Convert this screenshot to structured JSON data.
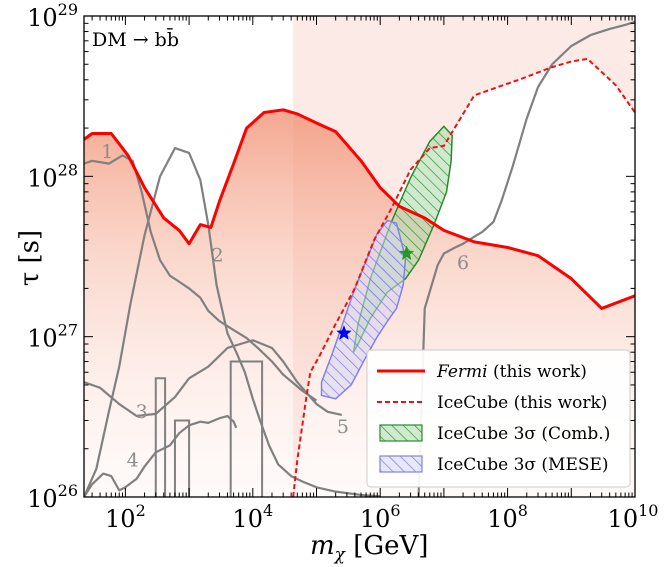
{
  "chart_data": {
    "type": "line",
    "annotation": "DM → bb̄",
    "xlabel": "m",
    "xlabel_sub": "χ",
    "xlabel_unit": " [GeV]",
    "ylabel": "τ [s]",
    "xscale": "log",
    "yscale": "log",
    "xlim": [
      22.4,
      10000000000.0
    ],
    "ylim": [
      1e+26,
      1e+29
    ],
    "x_ticks": [
      {
        "value": 100,
        "base": "10",
        "exp": "2"
      },
      {
        "value": 10000,
        "base": "10",
        "exp": "4"
      },
      {
        "value": 1000000,
        "base": "10",
        "exp": "6"
      },
      {
        "value": 100000000,
        "base": "10",
        "exp": "8"
      },
      {
        "value": 10000000000,
        "base": "10",
        "exp": "10"
      }
    ],
    "y_ticks": [
      {
        "value": 1e+26,
        "base": "10",
        "exp": "26"
      },
      {
        "value": 1e+27,
        "base": "10",
        "exp": "27"
      },
      {
        "value": 1e+28,
        "base": "10",
        "exp": "28"
      },
      {
        "value": 1e+29,
        "base": "10",
        "exp": "29"
      }
    ],
    "colors": {
      "fermi": "#ff0000",
      "fermi_fill": "#f6a58c",
      "icecube": "#ee1111",
      "icecube_fill": "#fbe6e3",
      "gray": "#808080",
      "label_gray": "#8c8c8c",
      "comb": "#2a8a2a",
      "comb_fill": "#9bd39b",
      "mese": "#8080ee",
      "mese_fill": "#c8c8f6",
      "star_green": "#229922",
      "star_blue": "#0000ee"
    },
    "series": [
      {
        "name": "Fermi (this work)",
        "role": "fermi",
        "x": [
          22.4,
          30,
          60,
          110,
          200,
          400,
          700,
          1000,
          1500,
          2200,
          3000,
          5000,
          8000,
          15000,
          30000,
          50000,
          100000,
          200000,
          500000,
          1000000,
          2000000,
          5000000,
          10000000,
          30000000,
          100000000,
          300000000,
          1000000000,
          3000000000,
          10000000000
        ],
        "y": [
          1.7e+28,
          1.85e+28,
          1.85e+28,
          1.35e+28,
          8.5e+27,
          5.5e+27,
          4.6e+27,
          3.8e+27,
          5e+27,
          4.8e+27,
          7e+27,
          1.2e+28,
          2e+28,
          2.5e+28,
          2.6e+28,
          2.45e+28,
          2.15e+28,
          1.9e+28,
          1.25e+28,
          8.5e+27,
          6.5e+27,
          5.5e+27,
          4.6e+27,
          3.9e+27,
          3.6e+27,
          3.2e+27,
          2.3e+27,
          1.5e+27,
          1.8e+27
        ]
      },
      {
        "name": "IceCube (this work)",
        "role": "icecube",
        "x": [
          43000,
          50000,
          70000,
          80000,
          110000,
          200000,
          400000,
          800000,
          1500000,
          3000000,
          6000000,
          10000000,
          30000000,
          70000000,
          150000000,
          500000000,
          1000000000,
          1800000000,
          5000000000,
          10000000000
        ],
        "y": [
          1e+26,
          1.7e+26,
          4.3e+26,
          6e+26,
          7.5e+26,
          1.2e+27,
          2e+27,
          4e+27,
          6.3e+27,
          1.1e+28,
          1.5e+28,
          1.55e+28,
          3.2e+28,
          3.6e+28,
          4e+28,
          4.8e+28,
          5.2e+28,
          5.4e+28,
          3.7e+28,
          2.5e+28
        ]
      },
      {
        "name": "1",
        "role": "gray",
        "x": [
          22.4,
          30,
          55,
          90,
          130,
          180,
          250,
          350,
          500,
          700,
          1000,
          1500,
          2000,
          3000,
          5000,
          8000,
          12000,
          20000,
          30000,
          60000,
          100000
        ],
        "y": [
          1.2e+28,
          1.25e+28,
          1.2e+28,
          1.35e+28,
          1.25e+28,
          8e+27,
          4.5e+27,
          3e+27,
          2.4e+27,
          2.2e+27,
          2e+27,
          1.75e+27,
          1.45e+27,
          1.25e+27,
          1.1e+27,
          9.8e+26,
          8.5e+26,
          7e+26,
          5.8e+26,
          4.6e+26,
          4e+26
        ]
      },
      {
        "name": "2",
        "role": "gray",
        "x": [
          22.4,
          35,
          55,
          80,
          120,
          200,
          350,
          600,
          1000,
          1500,
          2000,
          2700,
          4000,
          5500,
          7500,
          10000,
          13000,
          18000,
          25000,
          40000,
          60000,
          100000,
          200000,
          500000,
          1000000
        ],
        "y": [
          1e+26,
          1.5e+26,
          3.4e+26,
          6.5e+26,
          1.6e+27,
          4.3e+27,
          1e+28,
          1.5e+28,
          1.4e+28,
          9.5e+27,
          5e+27,
          2.1e+27,
          1.05e+27,
          8e+26,
          6e+26,
          4.1e+26,
          3e+26,
          2.1e+26,
          1.6e+26,
          1.35e+26,
          1.25e+26,
          1.15e+26,
          1.08e+26,
          1.03e+26,
          1.01e+26
        ]
      },
      {
        "name": "3",
        "role": "gray",
        "x": [
          22.4,
          40,
          80,
          150,
          300,
          600,
          1000,
          2000,
          4000,
          10000,
          20000,
          30000,
          50000,
          80000,
          100000,
          150000,
          250000
        ],
        "y": [
          5.2e+26,
          4.8e+26,
          3.8e+26,
          3.2e+26,
          3.3e+26,
          4.2e+26,
          5.5e+26,
          6.5e+26,
          8.5e+26,
          9.5e+26,
          8.5e+26,
          7e+26,
          5.2e+26,
          4.2e+26,
          3.8e+26,
          3.4e+26,
          3.25e+26
        ]
      },
      {
        "name": "4",
        "role": "gray",
        "x": [
          22.4,
          30,
          45,
          60,
          80,
          100,
          150,
          200,
          300,
          500,
          700,
          1000,
          1500,
          2000,
          3000,
          4000,
          5000,
          5500
        ],
        "y": [
          1e+26,
          1.2e+26,
          1.4e+26,
          1.35e+26,
          1.1e+26,
          1.15e+26,
          1.3e+26,
          1.55e+26,
          1.9e+26,
          2.1e+26,
          2.5e+26,
          2.8e+26,
          2.95e+26,
          2.9e+26,
          3.1e+26,
          3.2e+26,
          2.95e+26,
          2.7e+26
        ]
      },
      {
        "name": "6",
        "role": "gray",
        "x": [
          4000000,
          5000000,
          8000000,
          10000000,
          15000000,
          20000000,
          30000000,
          40000000,
          60000000,
          80000000,
          120000000,
          200000000,
          300000000,
          500000000,
          1000000000,
          2000000000,
          4000000000,
          7000000000,
          10000000000
        ],
        "y": [
          1e+26,
          1.5e+27,
          2.8e+27,
          3.3e+27,
          3.6e+27,
          3.8e+27,
          4.2e+27,
          4.5e+27,
          5.2e+27,
          7e+27,
          1.15e+28,
          2.3e+28,
          3.6e+28,
          5e+28,
          6.5e+28,
          7.6e+28,
          8.3e+28,
          8.8e+28,
          9.2e+28
        ]
      },
      {
        "name": "IceCube 3σ (Comb.)",
        "role": "comb",
        "x": [
          380000,
          450000,
          700000,
          1500000,
          3000000,
          6000000,
          10000000,
          13500000,
          13000000,
          11000000,
          7000000,
          4000000,
          2500000,
          1300000,
          700000,
          450000,
          380000
        ],
        "y": [
          8e+26,
          1.2e+27,
          2.3e+27,
          5.2e+27,
          9.8e+27,
          1.65e+28,
          2.05e+28,
          1.8e+28,
          1.25e+28,
          8e+27,
          5e+27,
          3e+27,
          2.3e+27,
          1.9e+27,
          1.3e+27,
          9e+26,
          8e+26
        ]
      }
    ],
    "regions_extra": [
      {
        "name": "IceCube 3σ (MESE)",
        "role": "mese",
        "x": [
          120000,
          120000,
          180000,
          400000,
          900000,
          1300000,
          1800000,
          2500000,
          2300000,
          1800000,
          1300000,
          900000,
          600000,
          350000,
          200000,
          120000
        ],
        "y": [
          4.3e+26,
          5.2e+26,
          8e+26,
          2e+27,
          4.4e+27,
          5.3e+27,
          5.1e+27,
          3.1e+27,
          2.1e+27,
          1.5e+27,
          1.25e+27,
          1e+27,
          7.5e+26,
          5e+26,
          4.1e+26,
          4.3e+26
        ]
      }
    ],
    "markers": [
      {
        "name": "IceCube comb. best fit",
        "role": "star_green",
        "x": 2600000,
        "y": 3.3e+27
      },
      {
        "name": "IceCube MESE best fit",
        "role": "star_blue",
        "x": 270000,
        "y": 1.05e+27
      }
    ],
    "curve_labels": [
      {
        "text": "1",
        "x": 52,
        "y": 1.3e+28
      },
      {
        "text": "2",
        "x": 2800,
        "y": 2.95e+27
      },
      {
        "text": "3",
        "x": 180,
        "y": 3.1e+26
      },
      {
        "text": "4",
        "x": 130,
        "y": 1.55e+26
      },
      {
        "text": "5",
        "x": 260000,
        "y": 2.5e+26
      },
      {
        "text": "6",
        "x": 20000000,
        "y": 2.65e+27
      }
    ],
    "legend": {
      "position": "lower-right",
      "entries": [
        {
          "label": "Fermi",
          "label_suffix": " (this work)",
          "italic": true,
          "role": "fermi",
          "style": "line"
        },
        {
          "label": "IceCube (this work)",
          "label_suffix": "",
          "italic": false,
          "role": "icecube",
          "style": "dashed"
        },
        {
          "label": "IceCube 3σ (Comb.)",
          "label_suffix": "",
          "italic": false,
          "role": "comb",
          "style": "hatch"
        },
        {
          "label": "IceCube 3σ (MESE)",
          "label_suffix": "",
          "italic": false,
          "role": "mese",
          "style": "hatch"
        }
      ]
    }
  }
}
